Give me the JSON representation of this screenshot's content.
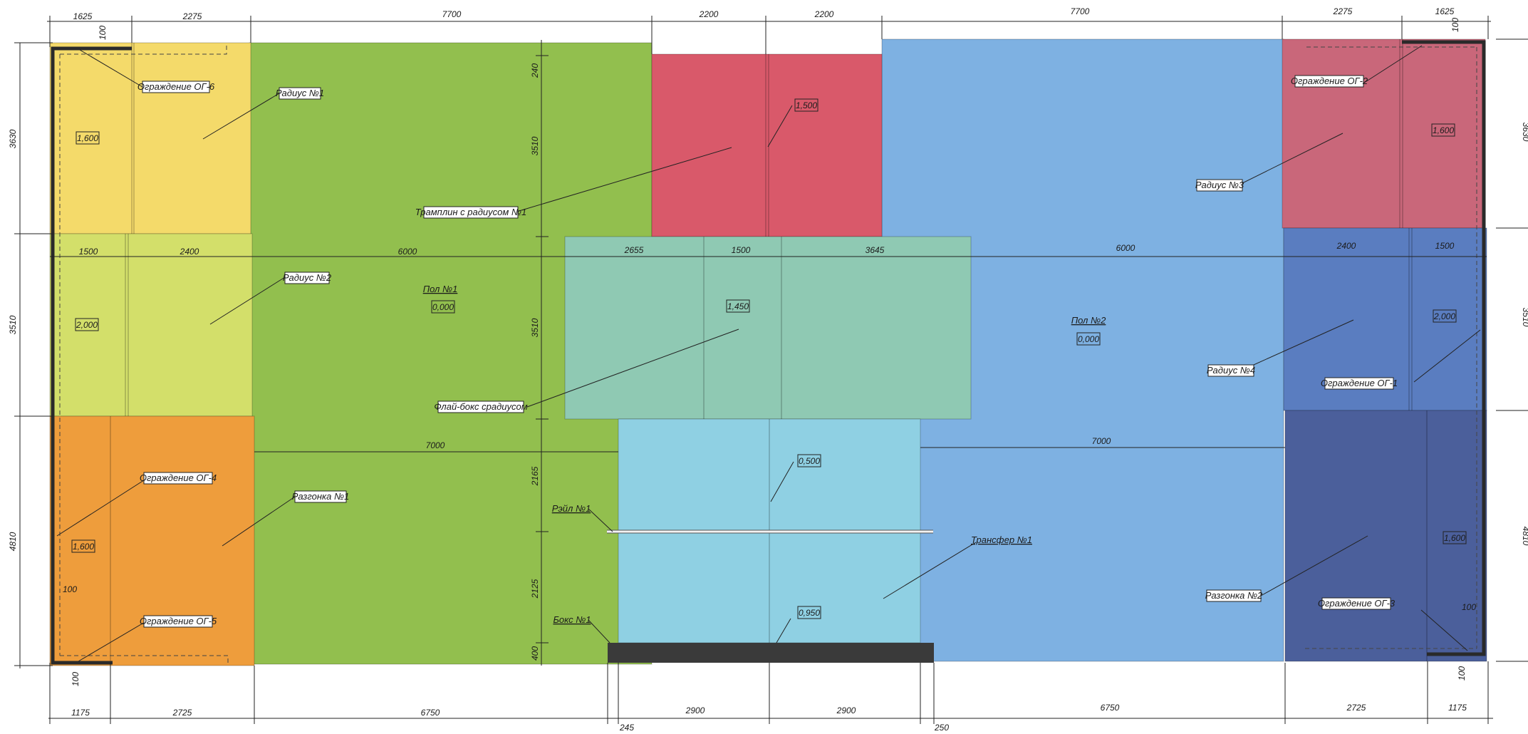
{
  "colors": {
    "yellow": "#f4da6a",
    "lime": "#d3df6a",
    "green": "#92bf4e",
    "red": "#d9596a",
    "mauve": "#c9677a",
    "blue": "#7eb1e2",
    "teal": "#8fc9b3",
    "cyan": "#8fd0e3",
    "navy": "#5a7dc0",
    "navy_dark": "#4b5f9b",
    "orange": "#ee9d3c",
    "box_black": "#3a3a3a"
  },
  "dims": {
    "top": [
      "1625",
      "2275",
      "7700",
      "2200",
      "2200",
      "7700",
      "2275",
      "1625"
    ],
    "top_small": [
      "100",
      "100"
    ],
    "row_top_left": [
      "1500",
      "2400",
      "6000"
    ],
    "row_top_mid": [
      "2655",
      "1500",
      "3645"
    ],
    "row_top_right": [
      "6000",
      "2400",
      "1500"
    ],
    "mid_left": "7000",
    "mid_right": "7000",
    "bottom": [
      "1175",
      "2725",
      "6750",
      "2900",
      "2900",
      "6750",
      "2725",
      "1175"
    ],
    "bottom_small": [
      "245",
      "250"
    ],
    "left": [
      "3630",
      "3510",
      "4810"
    ],
    "right": [
      "3630",
      "3510",
      "4810"
    ],
    "center_vertical": [
      "240",
      "3510",
      "3510",
      "2165",
      "2125",
      "400"
    ],
    "edge_small": [
      "100",
      "100",
      "100",
      "100"
    ]
  },
  "labels": {
    "og6": "Ограждение ОГ-6",
    "radius1": "Радиус №1",
    "tramplin": "Трамплин с радиусом №1",
    "radius2": "Радиус №2",
    "pol1": "Пол №1",
    "flybox": "Флай-бокс срадиусом",
    "og4": "Ограждение ОГ-4",
    "razgonka1": "Разгонка №1",
    "rail1": "Рэйл №1",
    "og5": "Ограждение ОГ-5",
    "box1": "Бокс №1",
    "og2": "Ограждение ОГ-2",
    "radius3": "Радиус №3",
    "pol2": "Пол №2",
    "radius4": "Радиус №4",
    "og1": "Ограждение ОГ-1",
    "transfer1": "Трансфер №1",
    "razgonka2": "Разгонка №2",
    "og3": "Ограждение ОГ-3"
  },
  "heights": {
    "h_yellow": "1,600",
    "h_lime": "2,000",
    "h_orange": "1,600",
    "h_pol1": "0,000",
    "h_red": "1,500",
    "h_teal": "1,450",
    "h_cyan_top": "0,500",
    "h_cyan_bottom": "0,950",
    "h_mauve": "1,600",
    "h_pol2": "0,000",
    "h_navy": "2,000",
    "h_navy_dark": "1,600"
  }
}
